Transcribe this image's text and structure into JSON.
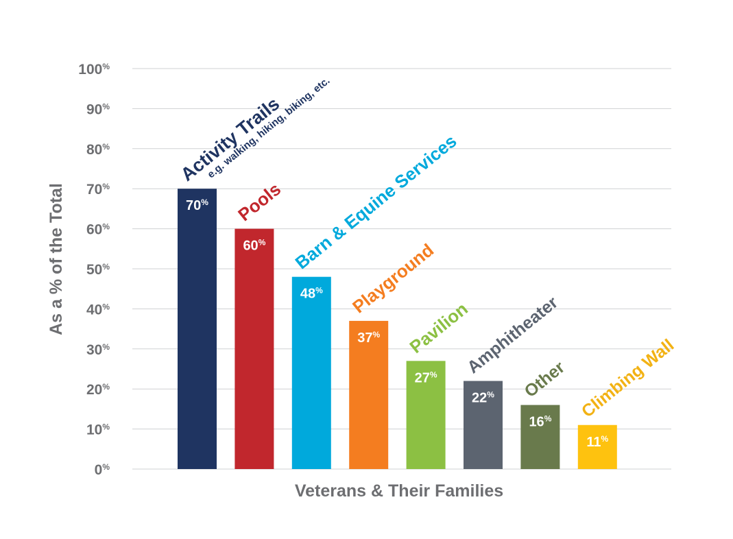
{
  "chart_data": {
    "type": "bar",
    "xlabel": "Veterans & Their Families",
    "ylabel": "As a % of the Total",
    "ylim": [
      0,
      100
    ],
    "grid": true,
    "y_ticks": [
      {
        "value": 0,
        "num": "0",
        "unit": "%"
      },
      {
        "value": 10,
        "num": "10",
        "unit": "%"
      },
      {
        "value": 20,
        "num": "20",
        "unit": "%"
      },
      {
        "value": 30,
        "num": "30",
        "unit": "%"
      },
      {
        "value": 40,
        "num": "40",
        "unit": "%"
      },
      {
        "value": 50,
        "num": "50",
        "unit": "%"
      },
      {
        "value": 60,
        "num": "60",
        "unit": "%"
      },
      {
        "value": 70,
        "num": "70",
        "unit": "%"
      },
      {
        "value": 80,
        "num": "80",
        "unit": "%"
      },
      {
        "value": 90,
        "num": "90",
        "unit": "%"
      },
      {
        "value": 100,
        "num": "100",
        "unit": "%"
      }
    ],
    "categories": [
      "Activity Trails",
      "Pools",
      "Barn & Equine Services",
      "Playground",
      "Pavilion",
      "Amphitheater",
      "Other",
      "Climbing Wall"
    ],
    "subtitles": [
      "e.g. walking, hiking, biking, etc.",
      "",
      "",
      "",
      "",
      "",
      "",
      ""
    ],
    "values": [
      70,
      60,
      48,
      37,
      27,
      22,
      16,
      11
    ],
    "value_labels": [
      "70",
      "60",
      "48",
      "37",
      "27",
      "22",
      "16",
      "11"
    ],
    "value_unit": "%",
    "colors": [
      "#1f3461",
      "#c1272d",
      "#00a9dc",
      "#f47d20",
      "#8cc043",
      "#5c6470",
      "#697a4c",
      "#fec20f"
    ],
    "label_colors": [
      "#1f3461",
      "#c1272d",
      "#00a9dc",
      "#f47d20",
      "#8cc043",
      "#5c6470",
      "#697a4c",
      "#f2b214"
    ]
  }
}
